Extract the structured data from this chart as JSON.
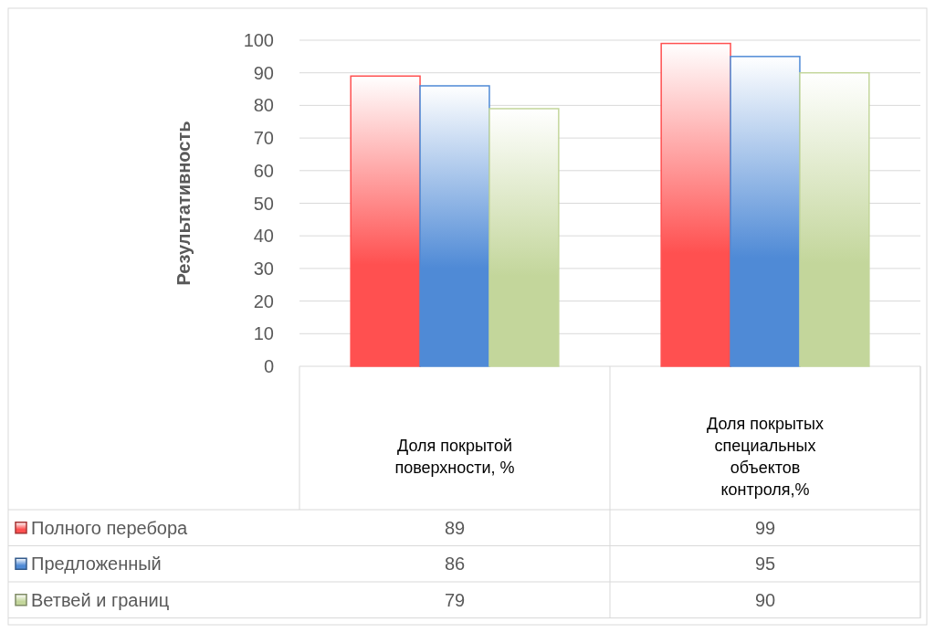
{
  "chart_data": {
    "type": "bar",
    "ylabel": "Результативность",
    "categories": [
      "Доля покрытой поверхности, %",
      "Доля покрытых специальных объектов контроля,%"
    ],
    "series": [
      {
        "name": "Полного перебора",
        "color": "#ff5050",
        "values": [
          89,
          99
        ]
      },
      {
        "name": "Предложенный",
        "color": "#4f8ad6",
        "values": [
          86,
          95
        ]
      },
      {
        "name": "Ветвей и границ",
        "color": "#c3d69b",
        "values": [
          79,
          90
        ]
      }
    ],
    "ylim": [
      0,
      100
    ],
    "yticks": [
      0,
      10,
      20,
      30,
      40,
      50,
      60,
      70,
      80,
      90,
      100
    ],
    "grid": "y",
    "legend": "bottom",
    "data_labels": true
  }
}
